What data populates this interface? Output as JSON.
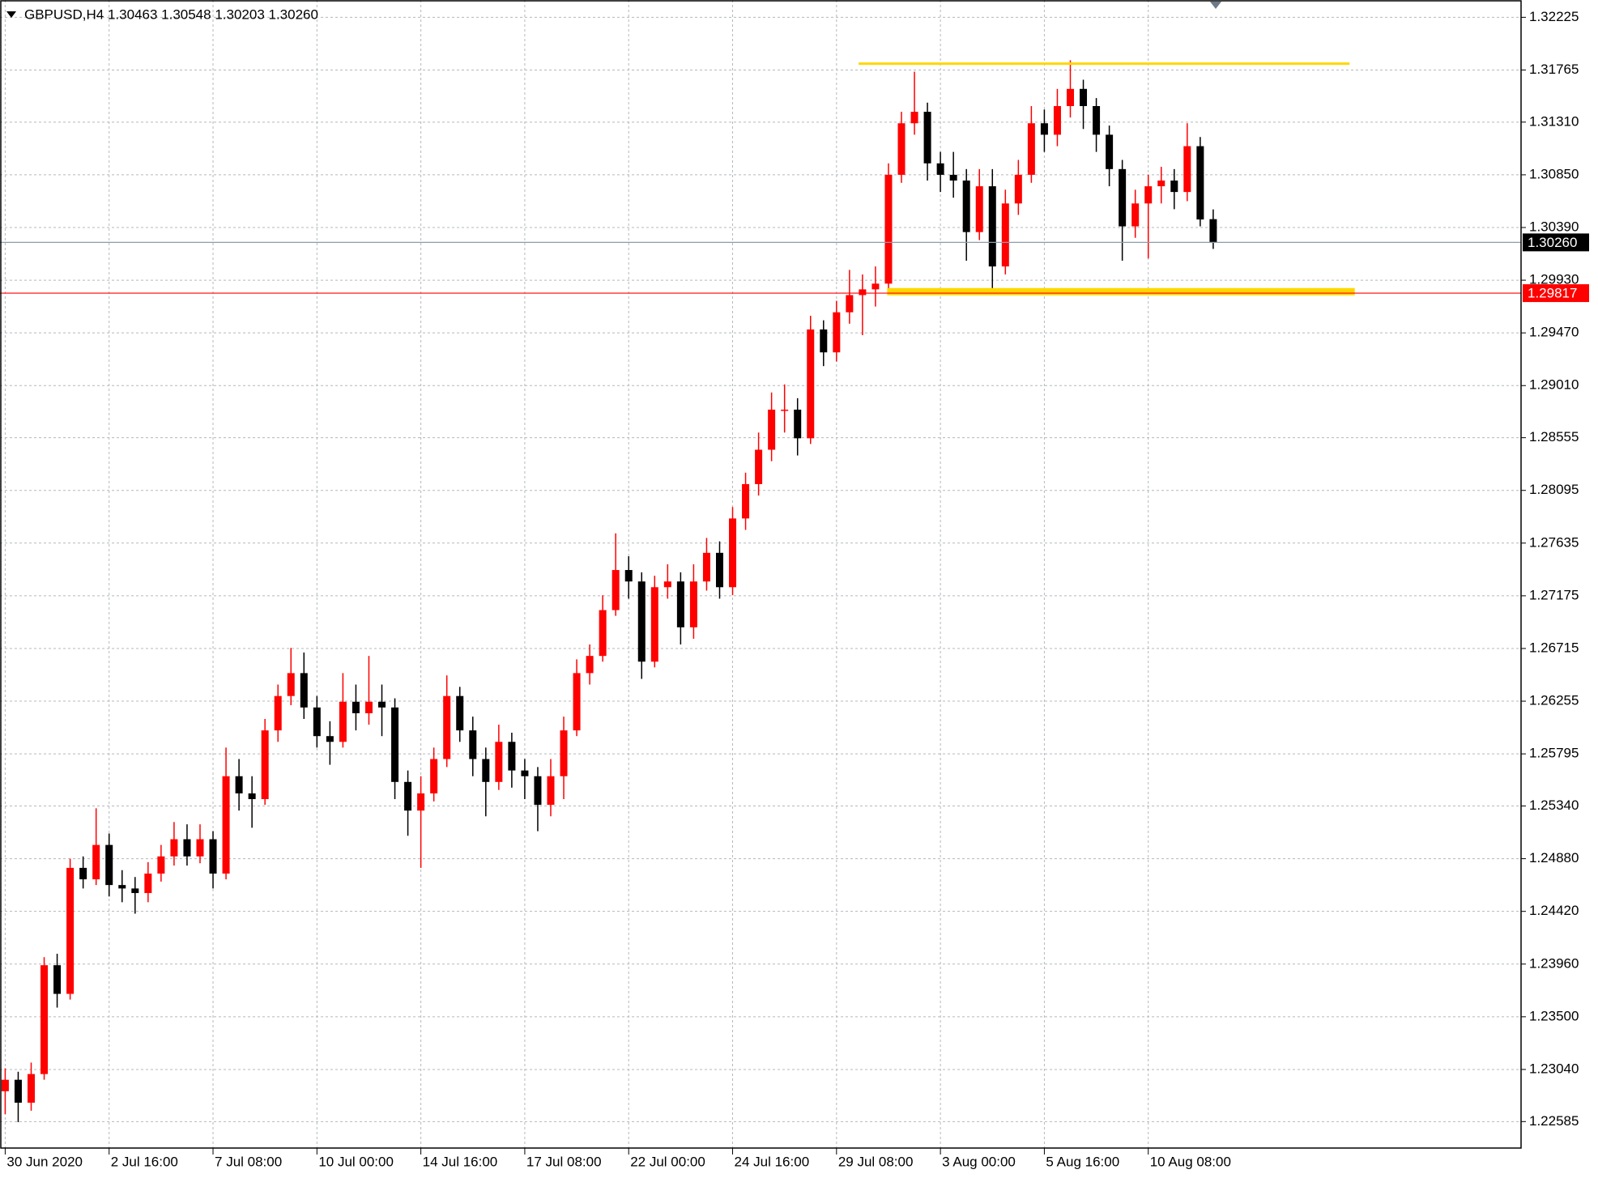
{
  "chart_data": {
    "type": "candlestick",
    "title": "GBPUSD,H4  1.30463 1.30548 1.30203 1.30260",
    "up_color": "#ff0000",
    "down_color": "#000000",
    "grid": true,
    "ylim": [
      1.22354,
      1.32376
    ],
    "yticks": [
      1.32225,
      1.31765,
      {
        "value": 1.3131,
        "label": "1.31310"
      },
      {
        "value": 1.3085,
        "label": "1.30850"
      },
      {
        "value": 1.3039,
        "label": "1.30390"
      },
      {
        "value": 1.2993,
        "label": "1.29930"
      },
      {
        "value": 1.2947,
        "label": "1.29470"
      },
      {
        "value": 1.2901,
        "label": "1.29010"
      },
      1.28555,
      1.28095,
      1.27635,
      1.27175,
      1.26715,
      1.26255,
      1.25795,
      {
        "value": 1.2534,
        "label": "1.25340"
      },
      {
        "value": 1.2488,
        "label": "1.24880"
      },
      {
        "value": 1.2442,
        "label": "1.24420"
      },
      {
        "value": 1.2396,
        "label": "1.23960"
      },
      {
        "value": 1.235,
        "label": "1.23500"
      },
      {
        "value": 1.2304,
        "label": "1.23040"
      },
      1.22585
    ],
    "xlim": [
      -0.4,
      116.7
    ],
    "xticks": [
      {
        "value": 0,
        "label": "30 Jun 2020"
      },
      {
        "value": 8,
        "label": "2 Jul 16:00"
      },
      {
        "value": 16,
        "label": "7 Jul 08:00"
      },
      {
        "value": 24,
        "label": "10 Jul 00:00"
      },
      {
        "value": 32,
        "label": "14 Jul 16:00"
      },
      {
        "value": 40,
        "label": "17 Jul 08:00"
      },
      {
        "value": 48,
        "label": "22 Jul 00:00"
      },
      {
        "value": 56,
        "label": "24 Jul 16:00"
      },
      {
        "value": 64,
        "label": "29 Jul 08:00"
      },
      {
        "value": 72,
        "label": "3 Aug 00:00"
      },
      {
        "value": 80,
        "label": "5 Aug 16:00"
      },
      {
        "value": 88,
        "label": "10 Aug 08:00"
      }
    ],
    "price_lines": [
      {
        "value": 1.3026,
        "label": "1.30260",
        "color": "#8c9bab",
        "label_color": "#000000"
      },
      {
        "value": 1.29817,
        "label": "1.29817",
        "color": "#ff0000",
        "label_color": "#ff0000"
      }
    ],
    "levels": [
      {
        "value": 1.3182,
        "x": [
          65.7,
          103.5
        ],
        "color": "#ffd700",
        "width": 3
      },
      {
        "value": 1.2983,
        "x": [
          67.9,
          103.9
        ],
        "color": "#ffd700",
        "width": 9
      }
    ],
    "candles": [
      [
        1.2285,
        1.2305,
        1.2265,
        1.2295
      ],
      [
        1.2295,
        1.2302,
        1.2258,
        1.2275
      ],
      [
        1.2275,
        1.231,
        1.2268,
        1.23
      ],
      [
        1.23,
        1.2402,
        1.2295,
        1.2395
      ],
      [
        1.2395,
        1.2405,
        1.2358,
        1.237
      ],
      [
        1.237,
        1.2488,
        1.2365,
        1.248
      ],
      [
        1.248,
        1.249,
        1.2462,
        1.247
      ],
      [
        1.247,
        1.2532,
        1.2465,
        1.25
      ],
      [
        1.25,
        1.251,
        1.2455,
        1.2465
      ],
      [
        1.2465,
        1.2478,
        1.245,
        1.2462
      ],
      [
        1.2462,
        1.2472,
        1.244,
        1.2458
      ],
      [
        1.2458,
        1.2485,
        1.245,
        1.2475
      ],
      [
        1.2475,
        1.25,
        1.2468,
        1.249
      ],
      [
        1.249,
        1.252,
        1.2482,
        1.2505
      ],
      [
        1.2505,
        1.2518,
        1.2482,
        1.249
      ],
      [
        1.249,
        1.2518,
        1.2484,
        1.2505
      ],
      [
        1.2505,
        1.2512,
        1.2462,
        1.2475
      ],
      [
        1.2475,
        1.2585,
        1.247,
        1.256
      ],
      [
        1.256,
        1.2575,
        1.253,
        1.2545
      ],
      [
        1.2545,
        1.256,
        1.2515,
        1.254
      ],
      [
        1.254,
        1.261,
        1.2535,
        1.26
      ],
      [
        1.26,
        1.264,
        1.259,
        1.263
      ],
      [
        1.263,
        1.2672,
        1.2622,
        1.265
      ],
      [
        1.265,
        1.2668,
        1.261,
        1.262
      ],
      [
        1.262,
        1.263,
        1.2585,
        1.2595
      ],
      [
        1.2595,
        1.2608,
        1.257,
        1.259
      ],
      [
        1.259,
        1.265,
        1.2585,
        1.2625
      ],
      [
        1.2625,
        1.264,
        1.26,
        1.2615
      ],
      [
        1.2615,
        1.2665,
        1.2605,
        1.2625
      ],
      [
        1.2625,
        1.264,
        1.2595,
        1.262
      ],
      [
        1.262,
        1.2628,
        1.254,
        1.2555
      ],
      [
        1.2555,
        1.2565,
        1.2508,
        1.253
      ],
      [
        1.253,
        1.256,
        1.248,
        1.2545
      ],
      [
        1.2545,
        1.2585,
        1.2538,
        1.2575
      ],
      [
        1.2575,
        1.2648,
        1.2568,
        1.263
      ],
      [
        1.263,
        1.2638,
        1.259,
        1.26
      ],
      [
        1.26,
        1.2612,
        1.256,
        1.2575
      ],
      [
        1.2575,
        1.2585,
        1.2525,
        1.2555
      ],
      [
        1.2555,
        1.2605,
        1.2548,
        1.259
      ],
      [
        1.259,
        1.2598,
        1.255,
        1.2565
      ],
      [
        1.2565,
        1.2575,
        1.254,
        1.256
      ],
      [
        1.256,
        1.2568,
        1.2512,
        1.2535
      ],
      [
        1.2535,
        1.2575,
        1.2525,
        1.256
      ],
      [
        1.256,
        1.2612,
        1.254,
        1.26
      ],
      [
        1.26,
        1.2662,
        1.2595,
        1.265
      ],
      [
        1.265,
        1.2675,
        1.264,
        1.2665
      ],
      [
        1.2665,
        1.2718,
        1.266,
        1.2705
      ],
      [
        1.2705,
        1.2772,
        1.27,
        1.274
      ],
      [
        1.274,
        1.2752,
        1.2715,
        1.273
      ],
      [
        1.273,
        1.2738,
        1.2645,
        1.266
      ],
      [
        1.266,
        1.2735,
        1.2655,
        1.2725
      ],
      [
        1.2725,
        1.2745,
        1.2715,
        1.273
      ],
      [
        1.273,
        1.2738,
        1.2675,
        1.269
      ],
      [
        1.269,
        1.2745,
        1.268,
        1.273
      ],
      [
        1.273,
        1.2768,
        1.2722,
        1.2755
      ],
      [
        1.2755,
        1.2765,
        1.2715,
        1.2725
      ],
      [
        1.2725,
        1.2795,
        1.2718,
        1.2785
      ],
      [
        1.2785,
        1.2825,
        1.2775,
        1.2815
      ],
      [
        1.2815,
        1.286,
        1.2805,
        1.2845
      ],
      [
        1.2845,
        1.2895,
        1.2835,
        1.288
      ],
      [
        1.288,
        1.2902,
        1.286,
        1.288
      ],
      [
        1.288,
        1.289,
        1.284,
        1.2855
      ],
      [
        1.2855,
        1.2962,
        1.285,
        1.295
      ],
      [
        1.295,
        1.2958,
        1.2918,
        1.293
      ],
      [
        1.293,
        1.2975,
        1.2922,
        1.2965
      ],
      [
        1.2965,
        1.3002,
        1.2955,
        1.298
      ],
      [
        1.298,
        1.2998,
        1.2945,
        1.2985
      ],
      [
        1.2985,
        1.3005,
        1.297,
        1.299
      ],
      [
        1.299,
        1.3095,
        1.2985,
        1.3085
      ],
      [
        1.3085,
        1.314,
        1.3078,
        1.313
      ],
      [
        1.313,
        1.3175,
        1.312,
        1.314
      ],
      [
        1.314,
        1.3148,
        1.308,
        1.3095
      ],
      [
        1.3095,
        1.3105,
        1.307,
        1.3085
      ],
      [
        1.3085,
        1.3105,
        1.3065,
        1.308
      ],
      [
        1.308,
        1.309,
        1.301,
        1.3035
      ],
      [
        1.3035,
        1.309,
        1.3028,
        1.3075
      ],
      [
        1.3075,
        1.309,
        1.2983,
        1.3005
      ],
      [
        1.3005,
        1.3072,
        1.2998,
        1.306
      ],
      [
        1.306,
        1.3098,
        1.305,
        1.3085
      ],
      [
        1.3085,
        1.3145,
        1.3078,
        1.313
      ],
      [
        1.313,
        1.3142,
        1.3105,
        1.312
      ],
      [
        1.312,
        1.316,
        1.311,
        1.3145
      ],
      [
        1.3145,
        1.3185,
        1.3135,
        1.316
      ],
      [
        1.316,
        1.3168,
        1.3125,
        1.3145
      ],
      [
        1.3145,
        1.3152,
        1.3105,
        1.312
      ],
      [
        1.312,
        1.3128,
        1.3075,
        1.309
      ],
      [
        1.309,
        1.3098,
        1.301,
        1.304
      ],
      [
        1.304,
        1.3072,
        1.303,
        1.306
      ],
      [
        1.306,
        1.3085,
        1.3012,
        1.3075
      ],
      [
        1.3075,
        1.3092,
        1.306,
        1.308
      ],
      [
        1.308,
        1.309,
        1.3055,
        1.307
      ],
      [
        1.307,
        1.313,
        1.3062,
        1.311
      ],
      [
        1.311,
        1.3118,
        1.304,
        1.3046
      ],
      [
        1.30463,
        1.30548,
        1.30203,
        1.3026
      ]
    ]
  }
}
